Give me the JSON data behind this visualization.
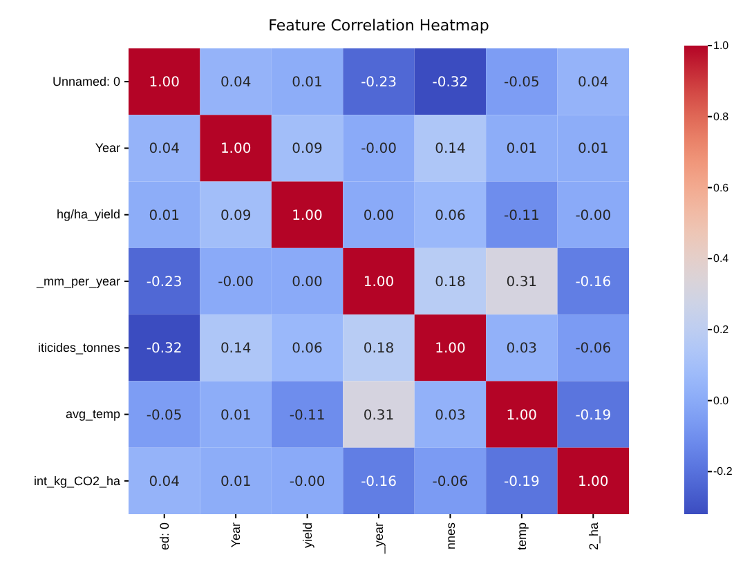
{
  "chart_data": {
    "type": "heatmap",
    "title": "Feature Correlation Heatmap",
    "categories": [
      "ed: 0",
      "Year",
      "yield",
      "_year",
      "nnes",
      "temp",
      "2_ha"
    ],
    "y_categories": [
      "Unnamed: 0",
      "Year",
      "hg/ha_yield",
      "_mm_per_year",
      "iticides_tonnes",
      "avg_temp",
      "int_kg_CO2_ha"
    ],
    "cells": [
      [
        1.0,
        0.04,
        0.01,
        -0.23,
        -0.32,
        -0.05,
        0.04
      ],
      [
        0.04,
        1.0,
        0.09,
        -0.0,
        0.14,
        0.01,
        0.01
      ],
      [
        0.01,
        0.09,
        1.0,
        0.0,
        0.06,
        -0.11,
        -0.0
      ],
      [
        -0.23,
        -0.0,
        0.0,
        1.0,
        0.18,
        0.31,
        -0.16
      ],
      [
        -0.32,
        0.14,
        0.06,
        0.18,
        1.0,
        0.03,
        -0.06
      ],
      [
        -0.05,
        0.01,
        -0.11,
        0.31,
        0.03,
        1.0,
        -0.19
      ],
      [
        0.04,
        0.01,
        -0.0,
        -0.16,
        -0.06,
        -0.19,
        1.0
      ]
    ],
    "cell_labels": [
      [
        "1.00",
        "0.04",
        "0.01",
        "-0.23",
        "-0.32",
        "-0.05",
        "0.04"
      ],
      [
        "0.04",
        "1.00",
        "0.09",
        "-0.00",
        "0.14",
        "0.01",
        "0.01"
      ],
      [
        "0.01",
        "0.09",
        "1.00",
        "0.00",
        "0.06",
        "-0.11",
        "-0.00"
      ],
      [
        "-0.23",
        "-0.00",
        "0.00",
        "1.00",
        "0.18",
        "0.31",
        "-0.16"
      ],
      [
        "-0.32",
        "0.14",
        "0.06",
        "0.18",
        "1.00",
        "0.03",
        "-0.06"
      ],
      [
        "-0.05",
        "0.01",
        "-0.11",
        "0.31",
        "0.03",
        "1.00",
        "-0.19"
      ],
      [
        "0.04",
        "0.01",
        "-0.00",
        "-0.16",
        "-0.06",
        "-0.19",
        "1.00"
      ]
    ],
    "clim": [
      -0.32,
      1.0
    ],
    "cticks": [
      {
        "value": 1.0,
        "label": "1.0"
      },
      {
        "value": 0.8,
        "label": "0.8"
      },
      {
        "value": 0.6,
        "label": "0.6"
      },
      {
        "value": 0.4,
        "label": "0.4"
      },
      {
        "value": 0.2,
        "label": "0.2"
      },
      {
        "value": 0.0,
        "label": "0.0"
      },
      {
        "value": -0.2,
        "label": "-0.2"
      }
    ]
  }
}
